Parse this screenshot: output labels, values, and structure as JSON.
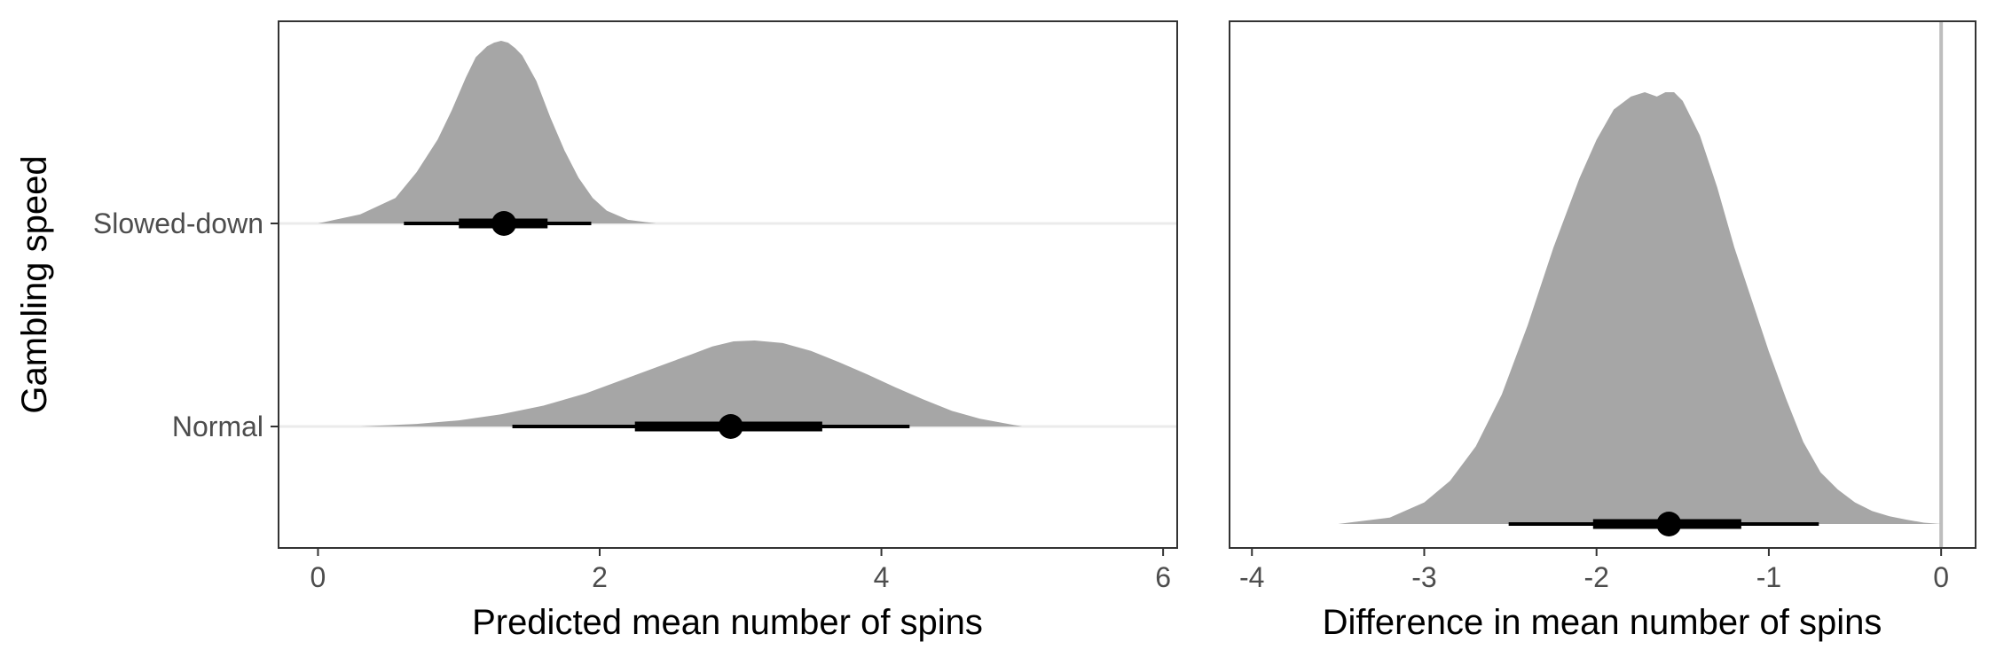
{
  "chart_data": [
    {
      "type": "area",
      "panel": "left",
      "xlabel": "Predicted mean number of spins",
      "ylabel": "Gambling speed",
      "xlim": [
        -0.28,
        6.1
      ],
      "x_ticks": [
        0,
        2,
        4,
        6
      ],
      "x_tick_labels": [
        "0",
        "2",
        "4",
        "6"
      ],
      "grid": "horizontal reference lines at each category",
      "categories": [
        "Slowed-down",
        "Normal"
      ],
      "series": [
        {
          "name": "Slowed-down",
          "density": {
            "x": [
              0.0,
              0.3,
              0.55,
              0.7,
              0.85,
              0.95,
              1.05,
              1.12,
              1.2,
              1.25,
              1.3,
              1.35,
              1.4,
              1.45,
              1.55,
              1.65,
              1.75,
              1.85,
              1.95,
              2.05,
              2.2,
              2.4
            ],
            "y": [
              0.0,
              0.05,
              0.14,
              0.28,
              0.46,
              0.62,
              0.8,
              0.91,
              0.97,
              0.99,
              1.0,
              0.99,
              0.96,
              0.92,
              0.78,
              0.58,
              0.4,
              0.25,
              0.14,
              0.07,
              0.02,
              0.0
            ]
          },
          "point_estimate": 1.32,
          "interval_66": [
            1.0,
            1.63
          ],
          "interval_95": [
            0.61,
            1.94
          ]
        },
        {
          "name": "Normal",
          "density": {
            "x": [
              0.3,
              0.7,
              1.0,
              1.3,
              1.6,
              1.9,
              2.1,
              2.3,
              2.5,
              2.65,
              2.8,
              2.95,
              3.1,
              3.3,
              3.5,
              3.7,
              3.9,
              4.1,
              4.3,
              4.5,
              4.7,
              4.9,
              5.0
            ],
            "y": [
              0.0,
              0.03,
              0.07,
              0.14,
              0.24,
              0.38,
              0.5,
              0.62,
              0.74,
              0.83,
              0.92,
              0.98,
              0.99,
              0.96,
              0.87,
              0.74,
              0.6,
              0.45,
              0.31,
              0.18,
              0.09,
              0.03,
              0.0
            ]
          },
          "point_estimate": 2.93,
          "interval_66": [
            2.25,
            3.58
          ],
          "interval_95": [
            1.38,
            4.2
          ]
        }
      ]
    },
    {
      "type": "area",
      "panel": "right",
      "xlabel": "Difference in mean number of spins",
      "ylabel": "",
      "xlim": [
        -4.13,
        0.2
      ],
      "x_ticks": [
        -4,
        -3,
        -2,
        -1,
        0
      ],
      "x_tick_labels": [
        "-4",
        "-3",
        "-2",
        "-1",
        "0"
      ],
      "reference_line": 0,
      "series": [
        {
          "name": "",
          "density": {
            "x": [
              -3.5,
              -3.2,
              -3.0,
              -2.85,
              -2.7,
              -2.55,
              -2.4,
              -2.25,
              -2.1,
              -2.0,
              -1.9,
              -1.8,
              -1.72,
              -1.65,
              -1.6,
              -1.55,
              -1.5,
              -1.4,
              -1.3,
              -1.2,
              -1.1,
              -1.0,
              -0.9,
              -0.8,
              -0.7,
              -0.6,
              -0.5,
              -0.4,
              -0.3,
              -0.2,
              -0.1,
              0.0
            ],
            "y": [
              0.0,
              0.015,
              0.05,
              0.1,
              0.18,
              0.3,
              0.46,
              0.64,
              0.8,
              0.89,
              0.96,
              0.99,
              1.0,
              0.99,
              1.0,
              1.0,
              0.98,
              0.9,
              0.78,
              0.64,
              0.52,
              0.4,
              0.29,
              0.19,
              0.12,
              0.08,
              0.05,
              0.03,
              0.018,
              0.01,
              0.003,
              0.0
            ]
          },
          "point_estimate": -1.58,
          "interval_66": [
            -2.02,
            -1.16
          ],
          "interval_95": [
            -2.51,
            -0.71
          ]
        }
      ]
    }
  ]
}
